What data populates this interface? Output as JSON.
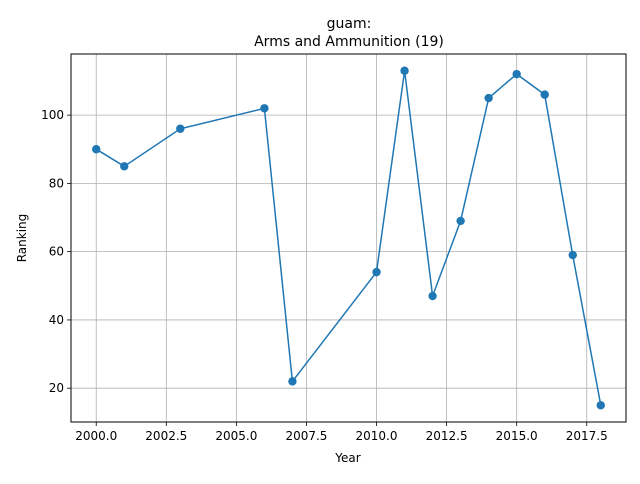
{
  "chart_data": {
    "type": "line",
    "title_line1": "guam:",
    "title_line2": "Arms and Ammunition (19)",
    "xlabel": "Year",
    "ylabel": "Ranking",
    "xlim": [
      1999.1,
      2018.9
    ],
    "ylim": [
      10.1,
      117.9
    ],
    "xticks": [
      2000.0,
      2002.5,
      2005.0,
      2007.5,
      2010.0,
      2012.5,
      2015.0,
      2017.5
    ],
    "xtick_labels": [
      "2000.0",
      "2002.5",
      "2005.0",
      "2007.5",
      "2010.0",
      "2012.5",
      "2015.0",
      "2017.5"
    ],
    "yticks": [
      20,
      40,
      60,
      80,
      100
    ],
    "ytick_labels": [
      "20",
      "40",
      "60",
      "80",
      "100"
    ],
    "grid": true,
    "series": [
      {
        "color": "#1f77b4",
        "marker": "circle",
        "x": [
          2000,
          2001,
          2003,
          2006,
          2007,
          2010,
          2011,
          2012,
          2013,
          2014,
          2015,
          2016,
          2017,
          2018
        ],
        "y": [
          90,
          85,
          96,
          102,
          22,
          54,
          113,
          47,
          69,
          105,
          112,
          106,
          59,
          15
        ]
      }
    ]
  }
}
